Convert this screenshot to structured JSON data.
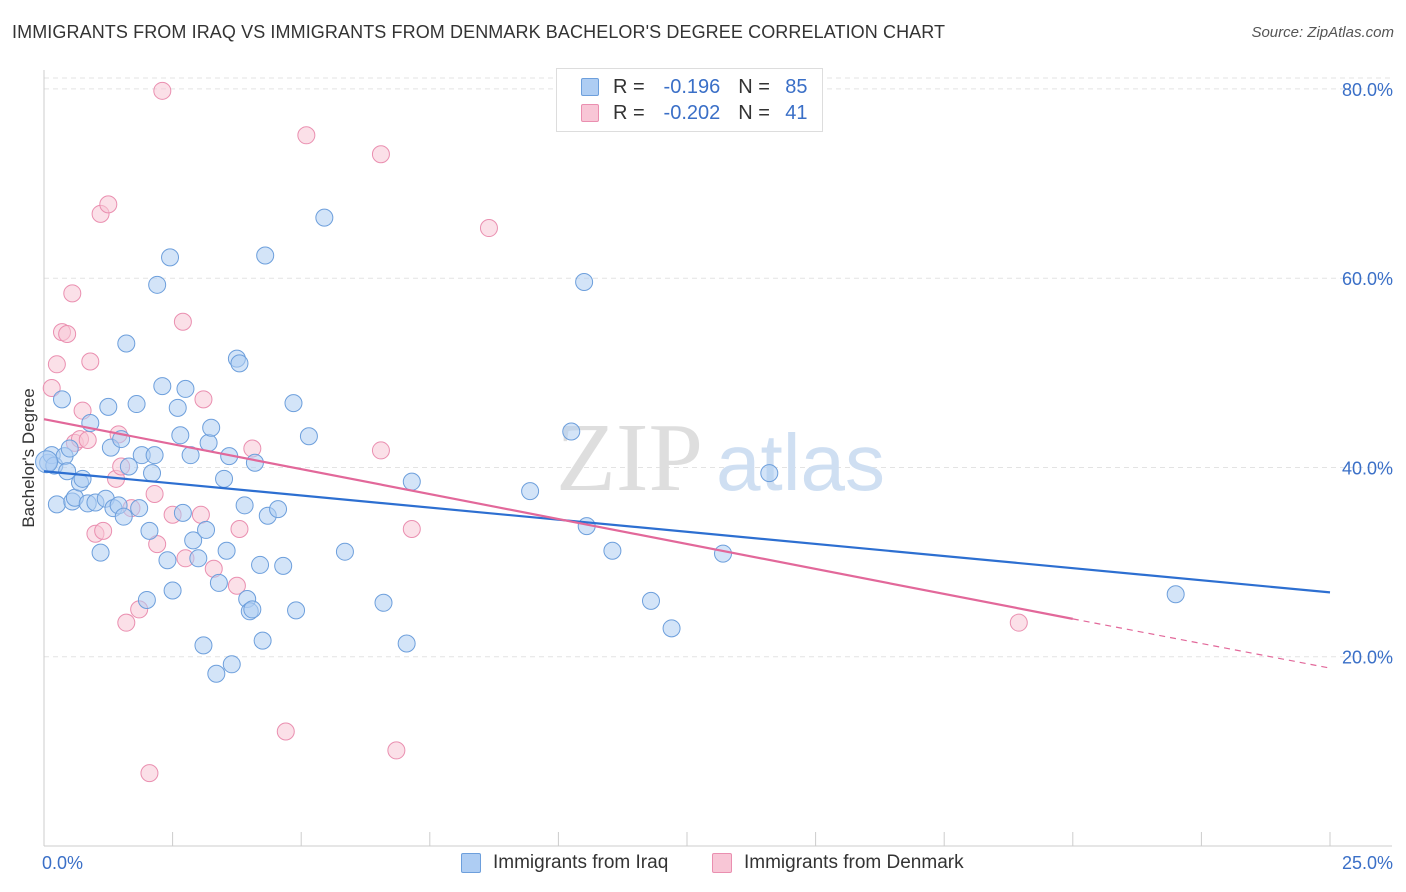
{
  "title": "IMMIGRANTS FROM IRAQ VS IMMIGRANTS FROM DENMARK BACHELOR'S DEGREE CORRELATION CHART",
  "source": "Source: ZipAtlas.com",
  "watermark": {
    "zip": "ZIP",
    "atlas": "atlas"
  },
  "colors": {
    "iraq_fill": "#aecdf3",
    "iraq_stroke": "#6d9fdc",
    "iraq_line": "#2d6fd1",
    "denmark_fill": "#f8c6d6",
    "denmark_stroke": "#ea8fb0",
    "denmark_line": "#e2689a",
    "axis_label": "#3a6fc7",
    "grid": "#e3e3e3"
  },
  "legend": {
    "iraq": {
      "r_label": "R =",
      "r_value": "-0.196",
      "n_label": "N =",
      "n_value": "85"
    },
    "denmark": {
      "r_label": "R =",
      "r_value": "-0.202",
      "n_label": "N =",
      "n_value": "41"
    }
  },
  "chart_data": {
    "type": "scatter",
    "title": "IMMIGRANTS FROM IRAQ VS IMMIGRANTS FROM DENMARK BACHELOR'S DEGREE CORRELATION CHART",
    "xlabel": "",
    "ylabel": "Bachelor's Degree",
    "xlim": [
      0,
      25
    ],
    "ylim": [
      0,
      82
    ],
    "x_tick_labels": [
      "0.0%",
      "25.0%"
    ],
    "y_ticks": [
      20,
      40,
      60,
      80
    ],
    "y_tick_labels": [
      "20.0%",
      "40.0%",
      "60.0%",
      "80.0%"
    ],
    "grid": true,
    "legend_placement": "top-center",
    "series": [
      {
        "name": "Immigrants from Iraq",
        "color": "#aecdf3",
        "trend": {
          "x": [
            0,
            25
          ],
          "y": [
            39.6,
            26.8
          ]
        },
        "points": [
          [
            0.08,
            40.5
          ],
          [
            0.15,
            41.3
          ],
          [
            0.2,
            40.2
          ],
          [
            0.25,
            36.1
          ],
          [
            0.35,
            47.2
          ],
          [
            0.4,
            41.2
          ],
          [
            0.45,
            39.6
          ],
          [
            0.55,
            36.4
          ],
          [
            0.6,
            36.8
          ],
          [
            0.7,
            38.4
          ],
          [
            0.75,
            38.8
          ],
          [
            0.85,
            36.2
          ],
          [
            0.9,
            44.7
          ],
          [
            1.0,
            36.3
          ],
          [
            1.1,
            31.0
          ],
          [
            1.2,
            36.7
          ],
          [
            1.25,
            46.4
          ],
          [
            1.3,
            42.1
          ],
          [
            1.35,
            35.7
          ],
          [
            1.45,
            36.0
          ],
          [
            1.5,
            43.0
          ],
          [
            1.55,
            34.8
          ],
          [
            1.6,
            53.1
          ],
          [
            1.65,
            40.1
          ],
          [
            1.8,
            46.7
          ],
          [
            1.85,
            35.7
          ],
          [
            1.9,
            41.3
          ],
          [
            2.0,
            26.0
          ],
          [
            2.05,
            33.3
          ],
          [
            2.1,
            39.4
          ],
          [
            2.15,
            41.3
          ],
          [
            2.2,
            59.3
          ],
          [
            2.3,
            48.6
          ],
          [
            2.4,
            30.2
          ],
          [
            2.45,
            62.2
          ],
          [
            2.5,
            27.0
          ],
          [
            2.6,
            46.3
          ],
          [
            2.65,
            43.4
          ],
          [
            2.7,
            35.2
          ],
          [
            2.75,
            48.3
          ],
          [
            2.85,
            41.3
          ],
          [
            2.9,
            32.3
          ],
          [
            3.0,
            30.4
          ],
          [
            3.1,
            21.2
          ],
          [
            3.15,
            33.4
          ],
          [
            3.2,
            42.6
          ],
          [
            3.25,
            44.2
          ],
          [
            3.35,
            18.2
          ],
          [
            3.4,
            27.8
          ],
          [
            3.5,
            38.8
          ],
          [
            3.55,
            31.2
          ],
          [
            3.6,
            41.2
          ],
          [
            3.65,
            19.2
          ],
          [
            3.75,
            51.5
          ],
          [
            3.8,
            51.0
          ],
          [
            3.9,
            36.0
          ],
          [
            3.95,
            26.1
          ],
          [
            4.0,
            24.8
          ],
          [
            4.05,
            25.0
          ],
          [
            4.1,
            40.5
          ],
          [
            4.2,
            29.7
          ],
          [
            4.25,
            21.7
          ],
          [
            4.3,
            62.4
          ],
          [
            4.35,
            34.9
          ],
          [
            4.55,
            35.6
          ],
          [
            4.65,
            29.6
          ],
          [
            4.9,
            24.9
          ],
          [
            4.85,
            46.8
          ],
          [
            5.15,
            43.3
          ],
          [
            5.45,
            66.4
          ],
          [
            5.85,
            31.1
          ],
          [
            6.6,
            25.7
          ],
          [
            7.05,
            21.4
          ],
          [
            7.15,
            38.5
          ],
          [
            9.45,
            37.5
          ],
          [
            10.25,
            43.8
          ],
          [
            10.5,
            59.6
          ],
          [
            10.55,
            33.8
          ],
          [
            11.05,
            31.2
          ],
          [
            11.8,
            25.9
          ],
          [
            12.2,
            23.0
          ],
          [
            13.2,
            30.9
          ],
          [
            14.1,
            39.4
          ],
          [
            22.0,
            26.6
          ],
          [
            0.5,
            42.0
          ]
        ]
      },
      {
        "name": "Immigrants from Denmark",
        "color": "#f8c6d6",
        "trend": {
          "x": [
            0,
            20
          ],
          "y": [
            45.1,
            24.0
          ]
        },
        "trend_dashed": {
          "x": [
            20,
            25
          ],
          "y": [
            24.0,
            18.8
          ]
        },
        "points": [
          [
            0.15,
            48.4
          ],
          [
            0.25,
            50.9
          ],
          [
            0.35,
            54.3
          ],
          [
            0.45,
            54.1
          ],
          [
            0.55,
            58.4
          ],
          [
            0.6,
            42.6
          ],
          [
            0.7,
            43.0
          ],
          [
            0.75,
            46.0
          ],
          [
            0.85,
            42.9
          ],
          [
            0.9,
            51.2
          ],
          [
            1.0,
            33.0
          ],
          [
            1.1,
            66.8
          ],
          [
            1.15,
            33.3
          ],
          [
            1.25,
            67.8
          ],
          [
            1.4,
            38.8
          ],
          [
            1.45,
            43.5
          ],
          [
            1.5,
            40.1
          ],
          [
            1.6,
            23.6
          ],
          [
            1.7,
            35.7
          ],
          [
            1.85,
            25.0
          ],
          [
            2.05,
            7.7
          ],
          [
            2.15,
            37.2
          ],
          [
            2.2,
            31.9
          ],
          [
            2.3,
            79.8
          ],
          [
            2.5,
            35.0
          ],
          [
            2.7,
            55.4
          ],
          [
            2.75,
            30.4
          ],
          [
            3.05,
            35.0
          ],
          [
            3.1,
            47.2
          ],
          [
            3.3,
            29.3
          ],
          [
            3.75,
            27.5
          ],
          [
            3.8,
            33.5
          ],
          [
            4.05,
            42.0
          ],
          [
            4.7,
            12.1
          ],
          [
            5.1,
            75.1
          ],
          [
            6.55,
            73.1
          ],
          [
            6.55,
            41.8
          ],
          [
            6.85,
            10.1
          ],
          [
            7.15,
            33.5
          ],
          [
            8.65,
            65.3
          ],
          [
            18.95,
            23.6
          ]
        ]
      }
    ]
  },
  "bottom_legend": {
    "iraq": "Immigrants from Iraq",
    "denmark": "Immigrants from Denmark"
  }
}
